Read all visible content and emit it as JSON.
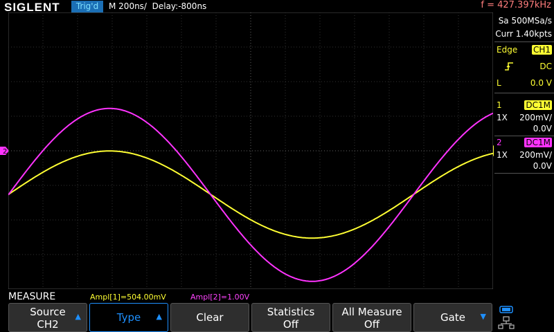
{
  "header": {
    "brand": "SIGLENT",
    "trigger_status": "Trig'd",
    "timebase": "M 200ns/",
    "delay": "Delay:-800ns",
    "frequency": "f = 427.397kHz"
  },
  "acquisition": {
    "sample_rate": "Sa 500MSa/s",
    "memory": "Curr 1.40kpts"
  },
  "trigger": {
    "type": "Edge",
    "source": "CH1",
    "coupling": "DC",
    "level_label": "L",
    "level": "0.0 V"
  },
  "channels": [
    {
      "num": "1",
      "coupling": "DC1M",
      "probe": "1X",
      "scale": "200mV/",
      "offset": "0.0V",
      "color": "#ffff33"
    },
    {
      "num": "2",
      "coupling": "DC1M",
      "probe": "1X",
      "scale": "200mV/",
      "offset": "0.0V",
      "color": "#ff33ff"
    }
  ],
  "measure": {
    "title": "MEASURE",
    "m1": "Ampl[1]=504.00mV",
    "m2": "Ampl[2]=1.00V"
  },
  "softkeys": {
    "source_l1": "Source",
    "source_l2": "CH2",
    "type": "Type",
    "clear": "Clear",
    "stats_l1": "Statistics",
    "stats_l2": "Off",
    "allm_l1": "All Measure",
    "allm_l2": "Off",
    "gate": "Gate"
  },
  "icons": {
    "trigger_slope": "rising-edge-icon",
    "channel2_marker": "channel2-ground-marker-icon",
    "trigger_position": "trigger-position-marker-icon",
    "network": "network-icon",
    "usb": "usb-icon"
  },
  "chart_data": {
    "type": "line",
    "title": "",
    "xlabel": "",
    "ylabel": "",
    "x_divisions": 14,
    "y_divisions": 8,
    "xlim": [
      -2200,
      600
    ],
    "x_unit": "ns",
    "ylim": [
      -800,
      800
    ],
    "y_unit": "mV",
    "series": [
      {
        "name": "CH1",
        "color": "#ffff33",
        "amplitude_mV": 504,
        "center_mV": -253,
        "period_ns": 2340,
        "phase_ns": -2200
      },
      {
        "name": "CH2",
        "color": "#ff33ff",
        "amplitude_mV": 1000,
        "center_mV": -255,
        "period_ns": 2340,
        "phase_ns": -2200
      }
    ]
  }
}
